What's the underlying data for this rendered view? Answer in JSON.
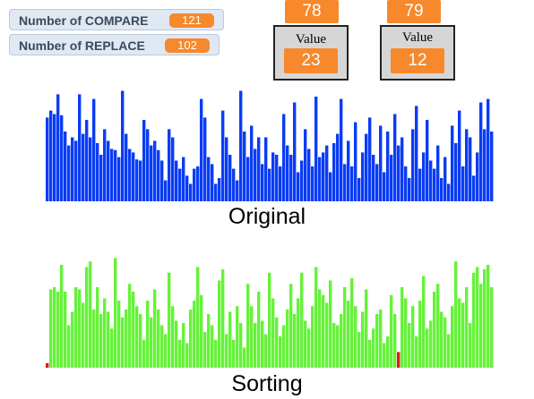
{
  "counters": [
    {
      "label": "Number of COMPARE",
      "value": 121
    },
    {
      "label": "Number of REPLACE",
      "value": 102
    }
  ],
  "compare_boxes": [
    {
      "index": 78,
      "label": "Value",
      "value": 23
    },
    {
      "index": 79,
      "label": "Value",
      "value": 12
    }
  ],
  "original": {
    "label": "Original",
    "color": "#0a3cf5",
    "ymax": 100,
    "values": [
      72,
      78,
      75,
      92,
      74,
      60,
      48,
      55,
      52,
      92,
      58,
      70,
      55,
      88,
      50,
      40,
      62,
      52,
      45,
      44,
      38,
      95,
      58,
      45,
      42,
      36,
      35,
      70,
      62,
      48,
      52,
      44,
      35,
      18,
      62,
      55,
      35,
      28,
      38,
      22,
      15,
      28,
      30,
      88,
      72,
      38,
      32,
      15,
      20,
      78,
      55,
      40,
      28,
      18,
      95,
      60,
      38,
      65,
      45,
      55,
      32,
      55,
      28,
      42,
      40,
      30,
      75,
      48,
      40,
      85,
      25,
      35,
      62,
      45,
      30,
      90,
      38,
      42,
      48,
      25,
      50,
      58,
      88,
      32,
      52,
      30,
      68,
      20,
      42,
      58,
      72,
      40,
      32,
      65,
      25,
      60,
      40,
      75,
      48,
      55,
      30,
      20,
      62,
      82,
      28,
      42,
      70,
      35,
      28,
      48,
      20,
      38,
      15,
      65,
      50,
      78,
      30,
      62,
      55,
      22,
      42,
      85,
      62,
      88,
      60
    ]
  },
  "sorting": {
    "label": "Sorting",
    "color": "#66f23a",
    "highlight_color": "#e8141a",
    "highlight": [
      0,
      98
    ],
    "ymax": 100,
    "values": [
      4,
      70,
      72,
      68,
      92,
      68,
      38,
      50,
      72,
      70,
      58,
      90,
      95,
      52,
      72,
      48,
      62,
      50,
      35,
      98,
      60,
      45,
      52,
      75,
      68,
      55,
      48,
      25,
      60,
      45,
      70,
      52,
      38,
      30,
      85,
      55,
      42,
      25,
      40,
      22,
      52,
      60,
      90,
      65,
      32,
      48,
      38,
      25,
      78,
      88,
      30,
      50,
      25,
      55,
      40,
      18,
      75,
      55,
      40,
      68,
      42,
      30,
      85,
      62,
      45,
      28,
      38,
      52,
      75,
      48,
      62,
      85,
      42,
      35,
      55,
      90,
      70,
      65,
      58,
      78,
      40,
      38,
      48,
      72,
      60,
      80,
      55,
      32,
      50,
      70,
      25,
      35,
      48,
      52,
      22,
      28,
      65,
      48,
      14,
      72,
      62,
      40,
      55,
      28,
      60,
      82,
      35,
      42,
      68,
      75,
      50,
      45,
      30,
      55,
      95,
      62,
      58,
      72,
      40,
      85,
      90,
      75,
      88,
      92,
      72
    ]
  }
}
